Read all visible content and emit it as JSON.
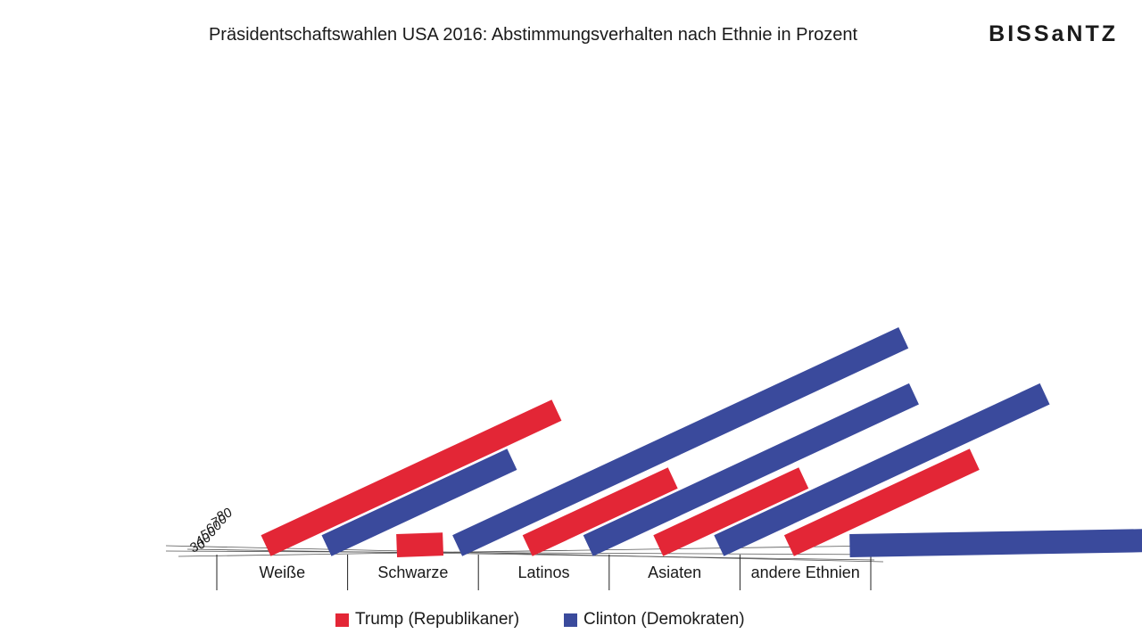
{
  "header": {
    "title": "Präsidentschaftswahlen USA 2016: Abstimmungsverhalten nach Ethnie in Prozent",
    "brand": "BISSaNTZ"
  },
  "colors": {
    "trump": "#e32636",
    "clinton": "#3a4a9c"
  },
  "chart_data": {
    "type": "bar",
    "title": "Präsidentschaftswahlen USA 2016: Abstimmungsverhalten nach Ethnie in Prozent",
    "categories": [
      "Weiße",
      "Schwarze",
      "Latinos",
      "Asiaten",
      "andere Ethnien"
    ],
    "series": [
      {
        "name": "Trump (Republikaner)",
        "values": [
          58,
          8,
          29,
          29,
          37
        ]
      },
      {
        "name": "Clinton (Demokraten)",
        "values": [
          37,
          89,
          65,
          65,
          58
        ]
      }
    ],
    "yticks": [
      30,
      40,
      50,
      60,
      70,
      80
    ],
    "ylim": [
      0,
      100
    ],
    "legend": "bottom",
    "grid": false,
    "style": "tilted 3D perspective bars"
  }
}
